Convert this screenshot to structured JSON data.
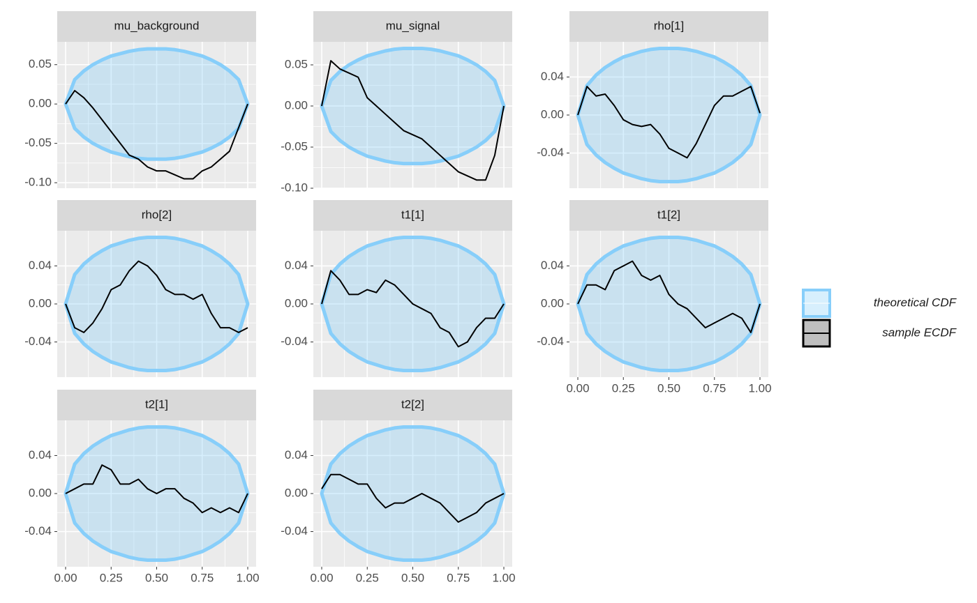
{
  "x": [
    0,
    0.05,
    0.1,
    0.15,
    0.2,
    0.25,
    0.3,
    0.35,
    0.4,
    0.45,
    0.5,
    0.55,
    0.6,
    0.65,
    0.7,
    0.75,
    0.8,
    0.85,
    0.9,
    0.95,
    1
  ],
  "band_upper": [
    0,
    0.031,
    0.042,
    0.05,
    0.056,
    0.061,
    0.064,
    0.067,
    0.069,
    0.07,
    0.07,
    0.07,
    0.069,
    0.067,
    0.064,
    0.061,
    0.056,
    0.05,
    0.042,
    0.031,
    0
  ],
  "band_lower": [
    0,
    -0.031,
    -0.042,
    -0.05,
    -0.056,
    -0.061,
    -0.064,
    -0.067,
    -0.069,
    -0.07,
    -0.07,
    -0.07,
    -0.069,
    -0.067,
    -0.064,
    -0.061,
    -0.056,
    -0.05,
    -0.042,
    -0.031,
    0
  ],
  "xlim": [
    -0.046,
    1.046
  ],
  "xticks": [
    {
      "value": 0,
      "label": "0.00"
    },
    0.25,
    {
      "value": 0.5,
      "label": "0.50"
    },
    0.75,
    {
      "value": 1,
      "label": "1.00"
    }
  ],
  "grid": true,
  "legend": [
    {
      "name": "theoretical CDF",
      "color": "#87cefa"
    },
    {
      "name": "sample ECDF",
      "color": "#000000"
    }
  ],
  "chart_data": [
    {
      "type": "line",
      "title": "mu_background",
      "ylim": [
        -0.107,
        0.079
      ],
      "yticks": [
        {
          "value": -0.1,
          "label": "-0.10"
        },
        -0.05,
        {
          "value": 0,
          "label": "0.00"
        },
        0.05
      ],
      "values": [
        0,
        0.017,
        0.008,
        -0.005,
        -0.02,
        -0.035,
        -0.05,
        -0.065,
        -0.07,
        -0.08,
        -0.085,
        -0.085,
        -0.09,
        -0.095,
        -0.095,
        -0.085,
        -0.08,
        -0.07,
        -0.06,
        -0.03,
        0
      ]
    },
    {
      "type": "line",
      "title": "mu_signal",
      "ylim": [
        -0.1,
        0.078
      ],
      "yticks": [
        {
          "value": -0.1,
          "label": "-0.10"
        },
        -0.05,
        {
          "value": 0,
          "label": "0.00"
        },
        0.05
      ],
      "values": [
        0,
        0.055,
        0.045,
        0.04,
        0.035,
        0.01,
        0,
        -0.01,
        -0.02,
        -0.03,
        -0.035,
        -0.04,
        -0.05,
        -0.06,
        -0.07,
        -0.08,
        -0.085,
        -0.09,
        -0.09,
        -0.06,
        0
      ]
    },
    {
      "type": "line",
      "title": "rho[1]",
      "ylim": [
        -0.077,
        0.077
      ],
      "yticks": [
        -0.04,
        {
          "value": 0,
          "label": "0.00"
        },
        0.04
      ],
      "values": [
        0,
        0.03,
        0.02,
        0.022,
        0.01,
        -0.005,
        -0.01,
        -0.012,
        -0.01,
        -0.02,
        -0.035,
        -0.04,
        -0.045,
        -0.03,
        -0.01,
        0.01,
        0.02,
        0.02,
        0.025,
        0.03,
        0.002
      ]
    },
    {
      "type": "line",
      "title": "rho[2]",
      "ylim": [
        -0.077,
        0.077
      ],
      "yticks": [
        -0.04,
        {
          "value": 0,
          "label": "0.00"
        },
        0.04
      ],
      "values": [
        0,
        -0.025,
        -0.03,
        -0.02,
        -0.005,
        0.015,
        0.02,
        0.035,
        0.045,
        0.04,
        0.03,
        0.015,
        0.01,
        0.01,
        0.005,
        0.01,
        -0.01,
        -0.025,
        -0.025,
        -0.03,
        -0.025
      ]
    },
    {
      "type": "line",
      "title": "t1[1]",
      "ylim": [
        -0.077,
        0.077
      ],
      "yticks": [
        -0.04,
        {
          "value": 0,
          "label": "0.00"
        },
        0.04
      ],
      "values": [
        0,
        0.035,
        0.025,
        0.01,
        0.01,
        0.015,
        0.012,
        0.025,
        0.02,
        0.01,
        0,
        -0.005,
        -0.01,
        -0.025,
        -0.03,
        -0.045,
        -0.04,
        -0.025,
        -0.015,
        -0.015,
        0
      ]
    },
    {
      "type": "line",
      "title": "t1[2]",
      "ylim": [
        -0.077,
        0.077
      ],
      "yticks": [
        -0.04,
        {
          "value": 0,
          "label": "0.00"
        },
        0.04
      ],
      "values": [
        0,
        0.02,
        0.02,
        0.015,
        0.035,
        0.04,
        0.045,
        0.03,
        0.025,
        0.03,
        0.01,
        0,
        -0.005,
        -0.015,
        -0.025,
        -0.02,
        -0.015,
        -0.01,
        -0.015,
        -0.03,
        0
      ]
    },
    {
      "type": "line",
      "title": "t2[1]",
      "ylim": [
        -0.077,
        0.077
      ],
      "yticks": [
        -0.04,
        {
          "value": 0,
          "label": "0.00"
        },
        0.04
      ],
      "values": [
        0,
        0.005,
        0.01,
        0.01,
        0.03,
        0.025,
        0.01,
        0.01,
        0.015,
        0.005,
        0,
        0.005,
        0.005,
        -0.005,
        -0.01,
        -0.02,
        -0.015,
        -0.02,
        -0.015,
        -0.02,
        0
      ]
    },
    {
      "type": "line",
      "title": "t2[2]",
      "ylim": [
        -0.077,
        0.077
      ],
      "yticks": [
        -0.04,
        {
          "value": 0,
          "label": "0.00"
        },
        0.04
      ],
      "values": [
        0.005,
        0.02,
        0.02,
        0.015,
        0.01,
        0.01,
        -0.005,
        -0.015,
        -0.01,
        -0.01,
        -0.005,
        0,
        -0.005,
        -0.01,
        -0.02,
        -0.03,
        -0.025,
        -0.02,
        -0.01,
        -0.005,
        0
      ]
    }
  ]
}
